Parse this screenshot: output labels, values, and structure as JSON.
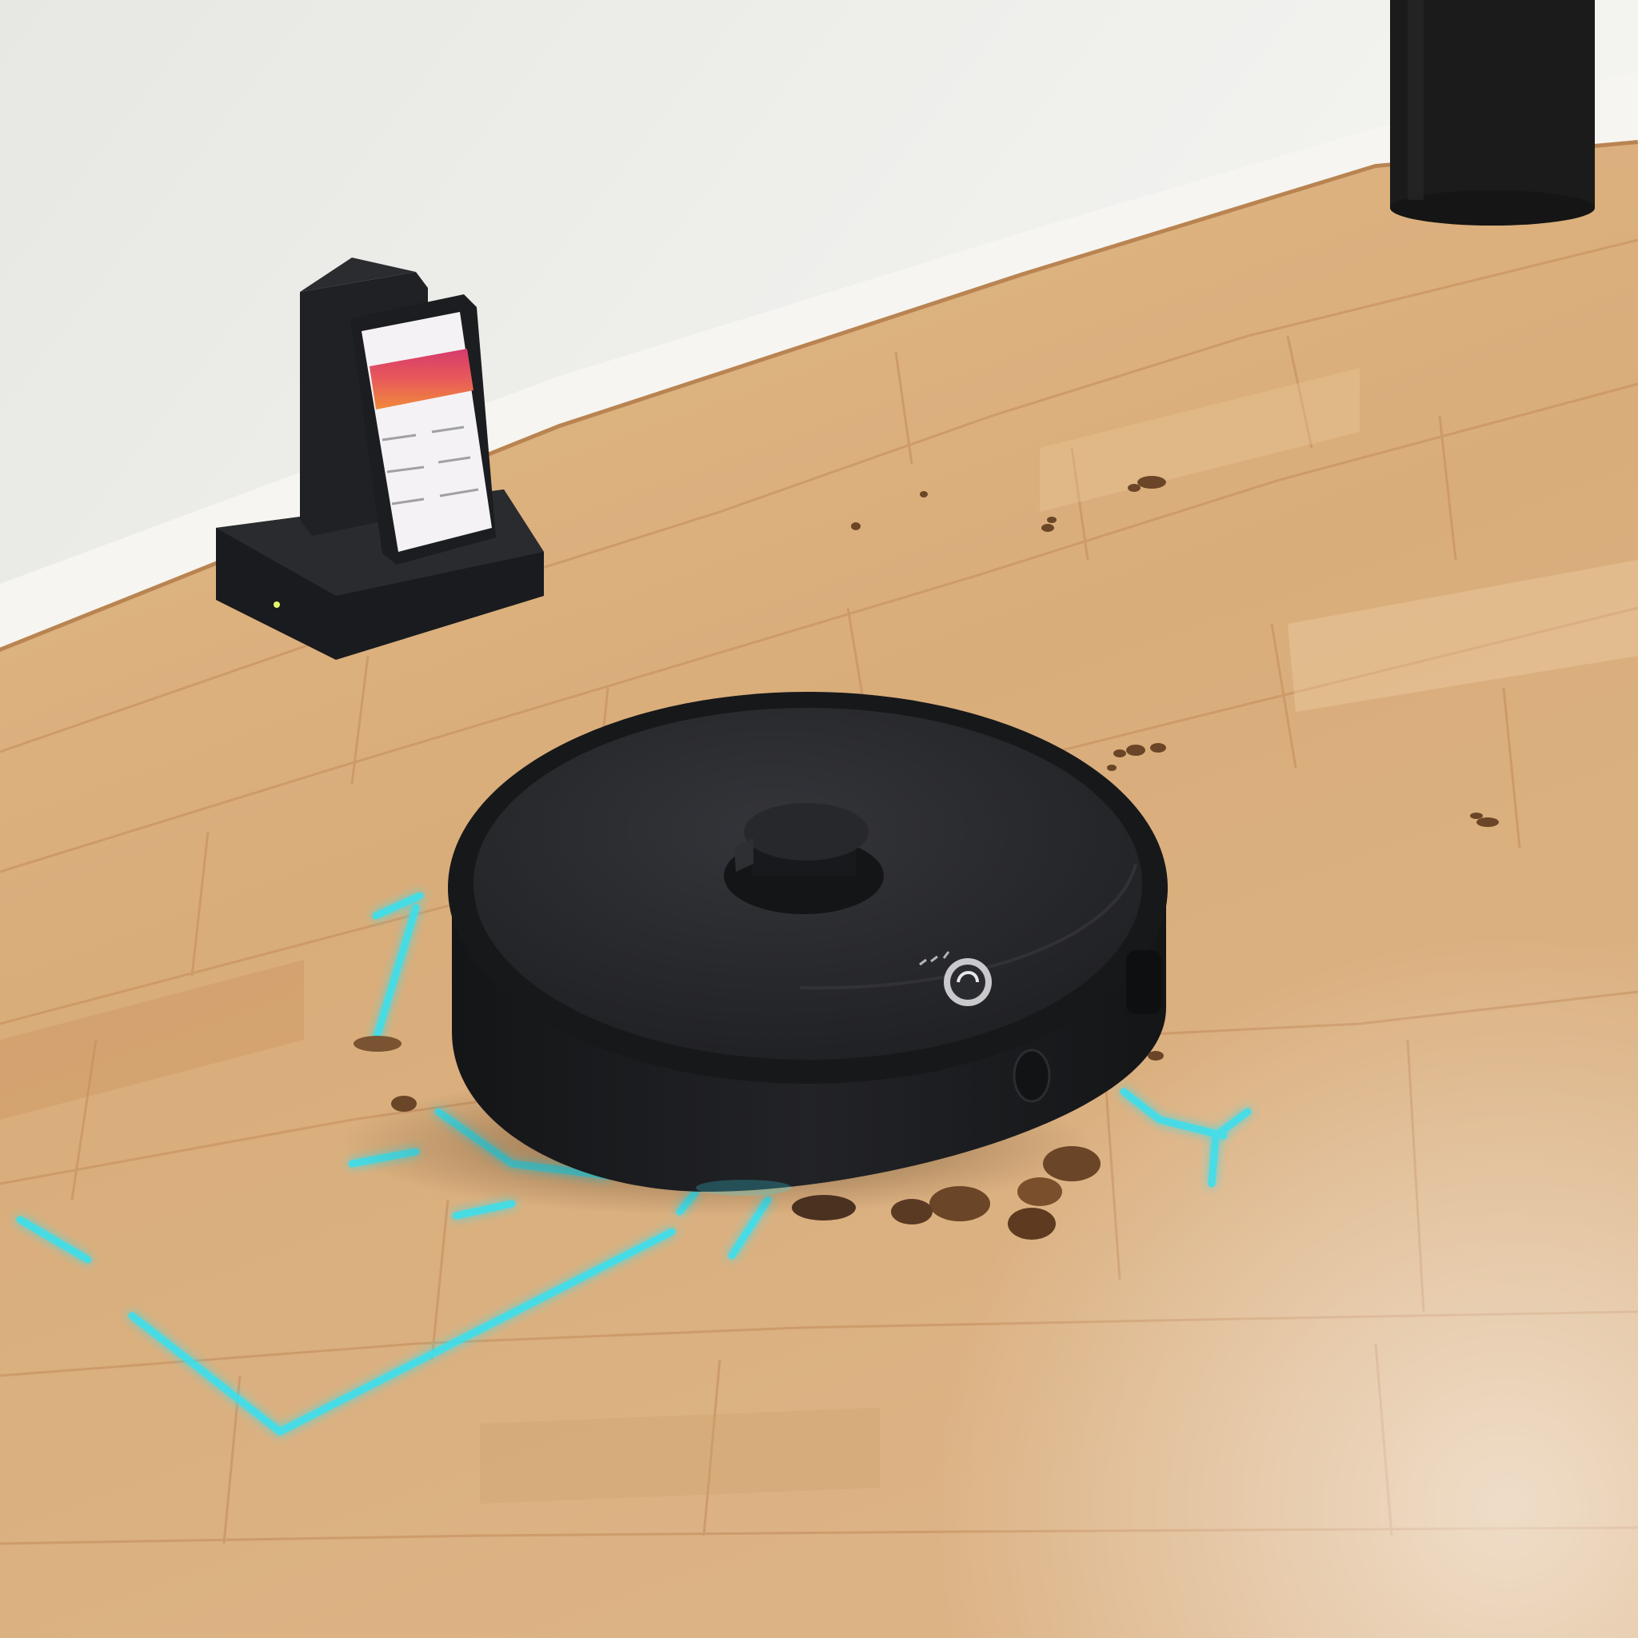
{
  "scene": {
    "kind": "photo",
    "subject": "robot-vacuum"
  },
  "colors": {
    "wall": "#ebebe8",
    "baseboard": "#f7f6f2",
    "floor_light": "#e2bd8f",
    "floor_mid": "#d7ab78",
    "floor_dark": "#c98f5c",
    "robot_body": "#1c1d20",
    "robot_top": "#2a2b2f",
    "path_glow": "#38e0f0",
    "phone_screen": "#f4f2f4",
    "phone_banner_top": "#d63a6c",
    "phone_banner_bottom": "#f08a3a",
    "dock": "#1e1f22",
    "debris": "#6b4527"
  },
  "icons": {
    "robot_logo": "circle-logo-icon",
    "dock_led": "status-led-icon"
  }
}
